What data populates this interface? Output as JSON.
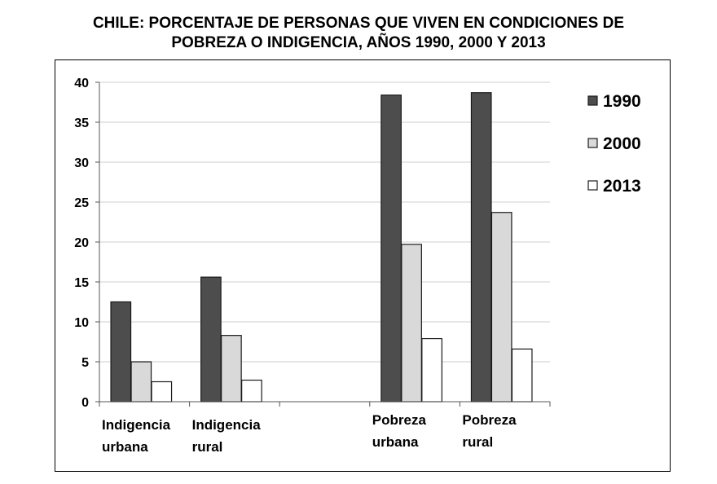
{
  "title_line1": "CHILE: PORCENTAJE DE PERSONAS QUE VIVEN EN CONDICIONES DE",
  "title_line2": "POBREZA O INDIGENCIA, AÑOS 1990, 2000 Y 2013",
  "chart_data": {
    "type": "bar",
    "title": "CHILE: PORCENTAJE DE PERSONAS QUE VIVEN EN CONDICIONES DE POBREZA O INDIGENCIA, AÑOS 1990, 2000 Y 2013",
    "categories": [
      [
        "Indigencia",
        "urbana"
      ],
      [
        "Indigencia",
        "rural"
      ],
      [
        "",
        ""
      ],
      [
        "Pobreza",
        "urbana"
      ],
      [
        "Pobreza",
        "rural"
      ]
    ],
    "series": [
      {
        "name": "1990",
        "color": "#4d4d4d",
        "values": [
          12.5,
          15.6,
          null,
          38.4,
          38.7
        ]
      },
      {
        "name": "2000",
        "color": "#d9d9d9",
        "values": [
          5.0,
          8.3,
          null,
          19.7,
          23.7
        ]
      },
      {
        "name": "2013",
        "color": "#ffffff",
        "values": [
          2.5,
          2.7,
          null,
          7.9,
          6.6
        ]
      }
    ],
    "yticks": [
      0,
      5,
      10,
      15,
      20,
      25,
      30,
      35,
      40
    ],
    "ylim": [
      0,
      40
    ],
    "grid": true,
    "legend_position": "right"
  }
}
